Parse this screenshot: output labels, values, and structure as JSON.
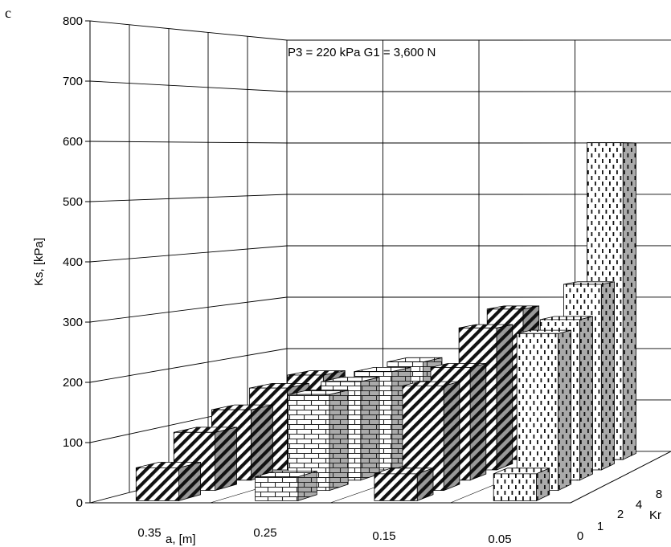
{
  "panel_label": "c",
  "chart_data": {
    "type": "bar3d",
    "title": "P3 = 220 kPa  G1 = 3,600 N",
    "ylabel": "Ks, [kPa]",
    "xlabel": "a, [m]",
    "zlabel": "Kr",
    "ylim": [
      0,
      800
    ],
    "y_ticks": [
      "0",
      "100",
      "200",
      "300",
      "400",
      "500",
      "600",
      "700",
      "800"
    ],
    "x_tick_labels": [
      "0.35",
      "0.25",
      "0.15",
      "0.05"
    ],
    "z_tick_labels": [
      "0",
      "1",
      "2",
      "4",
      "8"
    ],
    "grid": true,
    "series": [
      {
        "a": "0.35",
        "pattern": "diagonal-stripes",
        "values": [
          {
            "Kr": "0",
            "Ks": 55
          },
          {
            "Kr": "1",
            "Ks": 100
          },
          {
            "Kr": "2",
            "Ks": 125
          },
          {
            "Kr": "4",
            "Ks": 150
          },
          {
            "Kr": "8",
            "Ks": 160
          }
        ]
      },
      {
        "a": "0.25",
        "pattern": "brick",
        "values": [
          {
            "Kr": "0",
            "Ks": 40
          },
          {
            "Kr": "1",
            "Ks": 165
          },
          {
            "Kr": "2",
            "Ks": 175
          },
          {
            "Kr": "4",
            "Ks": 180
          },
          {
            "Kr": "8",
            "Ks": 185
          }
        ]
      },
      {
        "a": "0.15",
        "pattern": "diagonal-stripes",
        "values": [
          {
            "Kr": "0",
            "Ks": 45
          },
          {
            "Kr": "1",
            "Ks": 180
          },
          {
            "Kr": "2",
            "Ks": 200
          },
          {
            "Kr": "4",
            "Ks": 260
          },
          {
            "Kr": "8",
            "Ks": 285
          }
        ]
      },
      {
        "a": "0.05",
        "pattern": "dashed-dots",
        "values": [
          {
            "Kr": "0",
            "Ks": 45
          },
          {
            "Kr": "1",
            "Ks": 270
          },
          {
            "Kr": "2",
            "Ks": 285
          },
          {
            "Kr": "4",
            "Ks": 340
          },
          {
            "Kr": "8",
            "Ks": 600
          }
        ]
      }
    ]
  }
}
